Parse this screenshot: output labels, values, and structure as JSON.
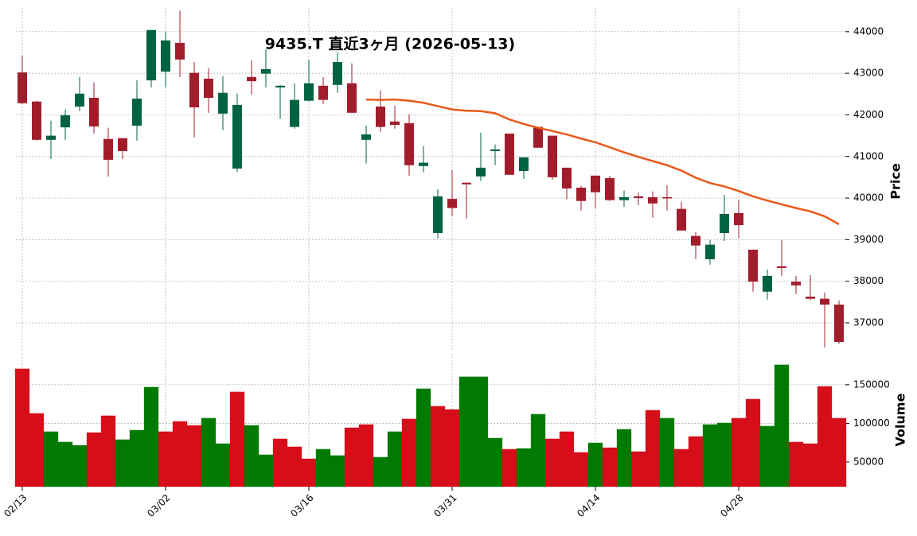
{
  "chart_data": {
    "type": "candlestick",
    "title": "9435.T  直近3ヶ月  (2026-05-13)",
    "categories": [
      "02/13",
      null,
      null,
      null,
      null,
      null,
      null,
      null,
      null,
      null,
      "03/02",
      null,
      null,
      null,
      null,
      null,
      null,
      null,
      null,
      null,
      "03/16",
      null,
      null,
      null,
      null,
      null,
      null,
      null,
      null,
      null,
      "03/31",
      null,
      null,
      null,
      null,
      null,
      null,
      null,
      null,
      null,
      "04/14",
      null,
      null,
      null,
      null,
      null,
      null,
      null,
      null,
      null,
      "04/28",
      null,
      null,
      null,
      null,
      null,
      null,
      null
    ],
    "open": [
      43020,
      42320,
      41400,
      41700,
      42200,
      42410,
      41420,
      41440,
      41740,
      42830,
      43040,
      43730,
      43010,
      42870,
      42030,
      40710,
      42910,
      42990,
      42660,
      41710,
      42340,
      42700,
      42720,
      42760,
      41400,
      42200,
      41840,
      41800,
      40770,
      39160,
      39980,
      40370,
      40520,
      41130,
      41550,
      40650,
      41710,
      41500,
      40730,
      40250,
      40540,
      40480,
      39950,
      40040,
      40020,
      40020,
      39740,
      39090,
      38530,
      39160,
      39640,
      38760,
      37750,
      38360,
      37990,
      37630,
      37580,
      37440
    ],
    "high": [
      43430,
      42340,
      41860,
      42130,
      42910,
      42780,
      41690,
      41440,
      42830,
      44040,
      44000,
      44500,
      43270,
      43120,
      42930,
      42510,
      43310,
      43580,
      42720,
      42760,
      43330,
      42910,
      43500,
      43240,
      41740,
      42590,
      42220,
      42010,
      41250,
      40210,
      40670,
      40370,
      41570,
      41290,
      41550,
      40980,
      41710,
      41500,
      40730,
      40290,
      40540,
      40540,
      40180,
      40140,
      40160,
      40310,
      39910,
      39180,
      38990,
      40080,
      39950,
      38760,
      38280,
      38990,
      38130,
      38150,
      37730,
      37540
    ],
    "low": [
      42260,
      41380,
      40940,
      41400,
      42090,
      41550,
      40520,
      40940,
      41380,
      42660,
      42660,
      42910,
      41460,
      42050,
      41630,
      40630,
      42490,
      42660,
      41900,
      41670,
      42320,
      42260,
      42530,
      42050,
      40830,
      41590,
      41670,
      40540,
      40620,
      39030,
      39560,
      39510,
      40410,
      40790,
      40560,
      40460,
      41210,
      40440,
      39970,
      39700,
      39760,
      39930,
      39790,
      39830,
      39530,
      39700,
      39220,
      38530,
      38400,
      38970,
      39030,
      37750,
      37560,
      38130,
      37690,
      37540,
      36410,
      36490
    ],
    "close": [
      42280,
      41400,
      41500,
      41990,
      42510,
      41720,
      40920,
      41130,
      42390,
      44040,
      43790,
      43330,
      42180,
      42410,
      42530,
      42240,
      42810,
      43100,
      42700,
      42360,
      42760,
      42360,
      43270,
      42050,
      41530,
      41710,
      41760,
      40790,
      40850,
      40040,
      39760,
      40330,
      40730,
      41170,
      40560,
      40980,
      41210,
      40500,
      40230,
      39930,
      40140,
      39950,
      40020,
      40000,
      39870,
      40000,
      39220,
      38860,
      38880,
      39620,
      39350,
      37990,
      38130,
      38320,
      37900,
      37580,
      37440,
      36540
    ],
    "up_color": "#006340",
    "down_color": "#a21d2b",
    "series": [
      {
        "color": "#e8591a",
        "values": [
          null,
          null,
          null,
          null,
          null,
          null,
          null,
          null,
          null,
          null,
          null,
          null,
          null,
          null,
          null,
          null,
          null,
          null,
          null,
          null,
          null,
          null,
          null,
          null,
          42370,
          42360,
          42370,
          42340,
          42290,
          42210,
          42130,
          42100,
          42090,
          42040,
          41890,
          41780,
          41690,
          41610,
          41530,
          41430,
          41340,
          41220,
          41100,
          40990,
          40890,
          40790,
          40660,
          40490,
          40360,
          40280,
          40170,
          40040,
          39940,
          39850,
          39760,
          39680,
          39560,
          39370
        ]
      }
    ],
    "ylabel": "Price",
    "ylim": [
      36350,
      44570
    ],
    "yticks": [
      37000,
      38000,
      39000,
      40000,
      41000,
      42000,
      43000,
      44000
    ],
    "grid": true,
    "volume": {
      "ylabel": "Volume",
      "ylim": [
        18000,
        190000
      ],
      "yticks": [
        50000,
        100000,
        150000
      ],
      "values": [
        170600,
        112900,
        89200,
        75800,
        71600,
        88100,
        109800,
        78900,
        91200,
        146900,
        89200,
        102600,
        97400,
        106700,
        73700,
        140700,
        97400,
        59300,
        79900,
        69600,
        54100,
        66500,
        58300,
        94300,
        98500,
        56200,
        89200,
        105700,
        144800,
        122200,
        118000,
        160300,
        160300,
        80900,
        66500,
        67500,
        111900,
        79900,
        89200,
        62400,
        74700,
        68500,
        92300,
        63400,
        117000,
        106700,
        66500,
        83000,
        98500,
        100500,
        106700,
        131400,
        96400,
        175800,
        75800,
        73700,
        147900,
        106700
      ],
      "colors": [
        "#d60e1a",
        "#d60e1a",
        "#007a00",
        "#007a00",
        "#007a00",
        "#d60e1a",
        "#d60e1a",
        "#007a00",
        "#007a00",
        "#007a00",
        "#d60e1a",
        "#d60e1a",
        "#d60e1a",
        "#007a00",
        "#007a00",
        "#d60e1a",
        "#007a00",
        "#007a00",
        "#d60e1a",
        "#d60e1a",
        "#d60e1a",
        "#007a00",
        "#007a00",
        "#d60e1a",
        "#d60e1a",
        "#007a00",
        "#007a00",
        "#d60e1a",
        "#007a00",
        "#d60e1a",
        "#d60e1a",
        "#007a00",
        "#007a00",
        "#007a00",
        "#d60e1a",
        "#007a00",
        "#007a00",
        "#d60e1a",
        "#d60e1a",
        "#d60e1a",
        "#007a00",
        "#d60e1a",
        "#007a00",
        "#d60e1a",
        "#d60e1a",
        "#007a00",
        "#d60e1a",
        "#d60e1a",
        "#007a00",
        "#007a00",
        "#d60e1a",
        "#d60e1a",
        "#007a00",
        "#007a00",
        "#d60e1a",
        "#d60e1a",
        "#d60e1a",
        "#d60e1a"
      ]
    }
  }
}
